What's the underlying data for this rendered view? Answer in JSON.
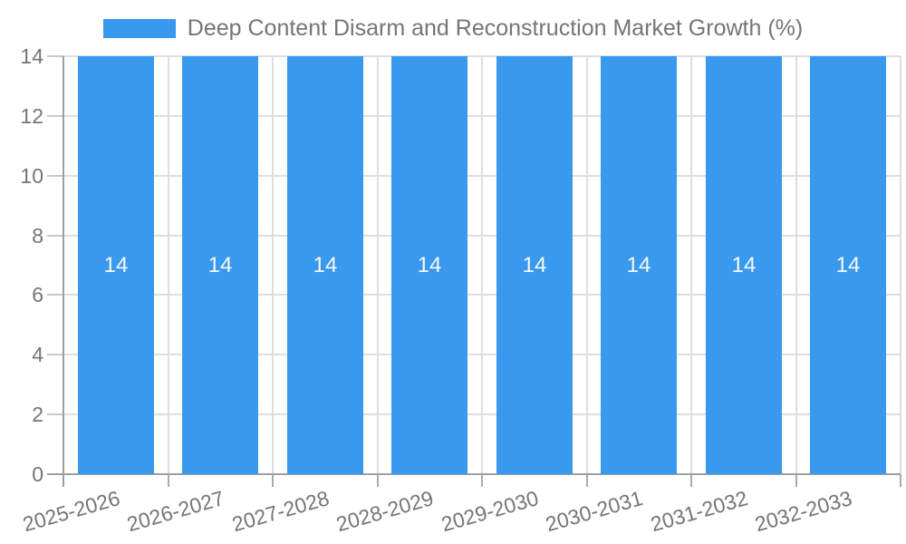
{
  "chart_data": {
    "type": "bar",
    "title": "Deep Content Disarm and Reconstruction Market Growth (%)",
    "legend": {
      "position": "top",
      "label": "Deep Content Disarm and Reconstruction Market Growth (%)"
    },
    "categories": [
      "2025-2026",
      "2026-2027",
      "2027-2028",
      "2028-2029",
      "2029-2030",
      "2030-2031",
      "2031-2032",
      "2032-2033"
    ],
    "series": [
      {
        "name": "Deep Content Disarm and Reconstruction Market Growth (%)",
        "values": [
          14,
          14,
          14,
          14,
          14,
          14,
          14,
          14
        ],
        "data_labels": [
          "14",
          "14",
          "14",
          "14",
          "14",
          "14",
          "14",
          "14"
        ]
      }
    ],
    "xlabel": "",
    "ylabel": "",
    "ylim": [
      0,
      14
    ],
    "yticks": [
      0,
      2,
      4,
      6,
      8,
      10,
      12,
      14
    ],
    "grid": "both",
    "x_tick_rotation_deg": -16,
    "colors": {
      "bar": "#3999EE",
      "bar_label": "#F8F8F8",
      "axis_text": "#757575",
      "grid_line": "#DEDEDE",
      "axis_line": "#9E9E9E",
      "background": "#FFFFFF"
    }
  }
}
